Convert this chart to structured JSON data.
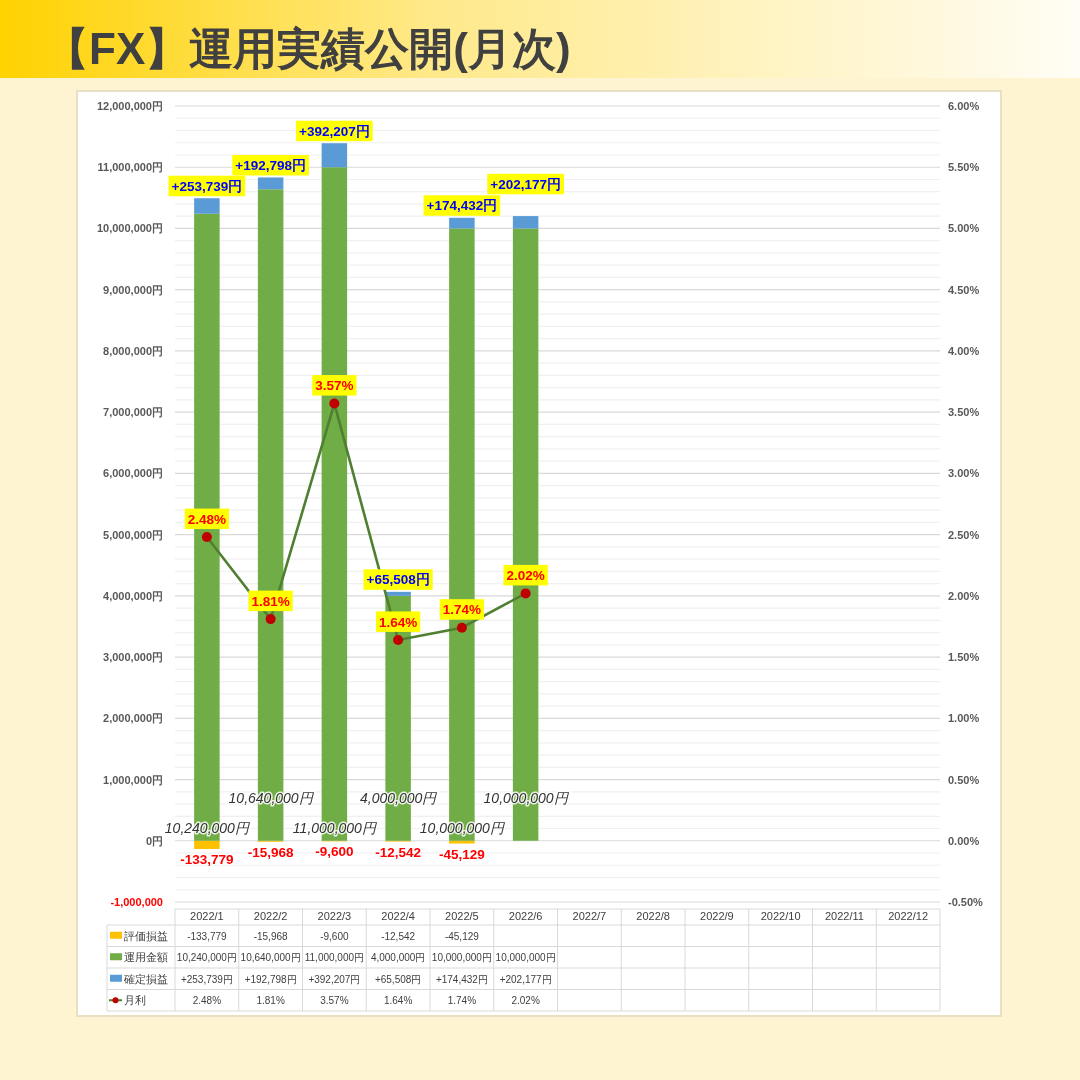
{
  "chart_data": {
    "type": "bar",
    "title": "【FX】運用実績公開(月次)",
    "stacked": true,
    "grid": "y",
    "legend": "bottom",
    "marker": "circle",
    "categories": [
      "2022/1",
      "2022/2",
      "2022/3",
      "2022/4",
      "2022/5",
      "2022/6",
      "2022/7",
      "2022/8",
      "2022/9",
      "2022/10",
      "2022/11",
      "2022/12"
    ],
    "series": [
      {
        "name": "評価損益",
        "color": "#ffc000",
        "values": [
          -133779,
          -15968,
          -9600,
          -12542,
          -45129,
          null,
          null,
          null,
          null,
          null,
          null,
          null
        ],
        "value_labels": [
          "-133,779",
          "-15,968",
          "-9,600",
          "-12,542",
          "-45,129",
          null,
          null,
          null,
          null,
          null,
          null,
          null
        ]
      },
      {
        "name": "運用金額",
        "color": "#70ad47",
        "values": [
          10240000,
          10640000,
          11000000,
          4000000,
          10000000,
          10000000,
          null,
          null,
          null,
          null,
          null,
          null
        ],
        "value_labels": [
          "10,240,000円",
          "10,640,000円",
          "11,000,000円",
          "4,000,000円",
          "10,000,000円",
          "10,000,000円",
          null,
          null,
          null,
          null,
          null,
          null
        ]
      },
      {
        "name": "確定損益",
        "color": "#5b9bd5",
        "values": [
          253739,
          192798,
          392207,
          65508,
          174432,
          202177,
          null,
          null,
          null,
          null,
          null,
          null
        ],
        "value_labels": [
          "+253,739円",
          "+192,798円",
          "+392,207円",
          "+65,508円",
          "+174,432円",
          "+202,177円",
          null,
          null,
          null,
          null,
          null,
          null
        ]
      },
      {
        "name": "月利",
        "type": "line",
        "axis": "y2",
        "color": "#507e32",
        "colors": [
          "#c00000",
          "#c00000",
          "#c00000",
          "#c00000",
          "#c00000",
          "#c00000",
          null,
          null,
          null,
          null,
          null,
          null
        ],
        "values": [
          2.48,
          1.81,
          3.57,
          1.64,
          1.74,
          2.02,
          null,
          null,
          null,
          null,
          null,
          null
        ],
        "value_labels": [
          "2.48%",
          "1.81%",
          "3.57%",
          "1.64%",
          "1.74%",
          "2.02%",
          null,
          null,
          null,
          null,
          null,
          null
        ]
      }
    ],
    "ylim": [
      -1000000,
      12000000
    ],
    "yticks": [
      {
        "value": -1000000,
        "label": "-1,000,000"
      },
      {
        "value": -800000,
        "label": null
      },
      {
        "value": -600000,
        "label": null
      },
      {
        "value": -400000,
        "label": null
      },
      {
        "value": -200000,
        "label": null
      },
      {
        "value": 0,
        "label": "0円"
      },
      {
        "value": 200000,
        "label": null
      },
      {
        "value": 400000,
        "label": null
      },
      {
        "value": 600000,
        "label": null
      },
      {
        "value": 800000,
        "label": null
      },
      {
        "value": 1000000,
        "label": "1,000,000円"
      },
      {
        "value": 1200000,
        "label": null
      },
      {
        "value": 1400000,
        "label": null
      },
      {
        "value": 1600000,
        "label": null
      },
      {
        "value": 1800000,
        "label": null
      },
      {
        "value": 2000000,
        "label": "2,000,000円"
      },
      {
        "value": 2200000,
        "label": null
      },
      {
        "value": 2400000,
        "label": null
      },
      {
        "value": 2600000,
        "label": null
      },
      {
        "value": 2800000,
        "label": null
      },
      {
        "value": 3000000,
        "label": "3,000,000円"
      },
      {
        "value": 3200000,
        "label": null
      },
      {
        "value": 3400000,
        "label": null
      },
      {
        "value": 3600000,
        "label": null
      },
      {
        "value": 3800000,
        "label": null
      },
      {
        "value": 4000000,
        "label": "4,000,000円"
      },
      {
        "value": 4200000,
        "label": null
      },
      {
        "value": 4400000,
        "label": null
      },
      {
        "value": 4600000,
        "label": null
      },
      {
        "value": 4800000,
        "label": null
      },
      {
        "value": 5000000,
        "label": "5,000,000円"
      },
      {
        "value": 5200000,
        "label": null
      },
      {
        "value": 5400000,
        "label": null
      },
      {
        "value": 5600000,
        "label": null
      },
      {
        "value": 5800000,
        "label": null
      },
      {
        "value": 6000000,
        "label": "6,000,000円"
      },
      {
        "value": 6200000,
        "label": null
      },
      {
        "value": 6400000,
        "label": null
      },
      {
        "value": 6600000,
        "label": null
      },
      {
        "value": 6800000,
        "label": null
      },
      {
        "value": 7000000,
        "label": "7,000,000円"
      },
      {
        "value": 7200000,
        "label": null
      },
      {
        "value": 7400000,
        "label": null
      },
      {
        "value": 7600000,
        "label": null
      },
      {
        "value": 7800000,
        "label": null
      },
      {
        "value": 8000000,
        "label": "8,000,000円"
      },
      {
        "value": 8200000,
        "label": null
      },
      {
        "value": 8400000,
        "label": null
      },
      {
        "value": 8600000,
        "label": null
      },
      {
        "value": 8800000,
        "label": null
      },
      {
        "value": 9000000,
        "label": "9,000,000円"
      },
      {
        "value": 9200000,
        "label": null
      },
      {
        "value": 9400000,
        "label": null
      },
      {
        "value": 9600000,
        "label": null
      },
      {
        "value": 9800000,
        "label": null
      },
      {
        "value": 10000000,
        "label": "10,000,000円"
      },
      {
        "value": 10200000,
        "label": null
      },
      {
        "value": 10400000,
        "label": null
      },
      {
        "value": 10600000,
        "label": null
      },
      {
        "value": 10800000,
        "label": null
      },
      {
        "value": 11000000,
        "label": "11,000,000円"
      },
      {
        "value": 11200000,
        "label": null
      },
      {
        "value": 11400000,
        "label": null
      },
      {
        "value": 11600000,
        "label": null
      },
      {
        "value": 11800000,
        "label": null
      },
      {
        "value": 12000000,
        "label": "12,000,000円"
      }
    ],
    "y2lim": [
      -0.5,
      6
    ],
    "y2ticks": [
      {
        "value": -0.5,
        "label": "-0.50%"
      },
      {
        "value": 0,
        "label": "0.00%"
      },
      {
        "value": 0.5,
        "label": "0.50%"
      },
      {
        "value": 1,
        "label": "1.00%"
      },
      {
        "value": 1.5,
        "label": "1.50%"
      },
      {
        "value": 2,
        "label": "2.00%"
      },
      {
        "value": 2.5,
        "label": "2.50%"
      },
      {
        "value": 3,
        "label": "3.00%"
      },
      {
        "value": 3.5,
        "label": "3.50%"
      },
      {
        "value": 4,
        "label": "4.00%"
      },
      {
        "value": 4.5,
        "label": "4.50%"
      },
      {
        "value": 5,
        "label": "5.00%"
      },
      {
        "value": 5.5,
        "label": "5.50%"
      },
      {
        "value": 6,
        "label": "6.00%"
      }
    ]
  }
}
